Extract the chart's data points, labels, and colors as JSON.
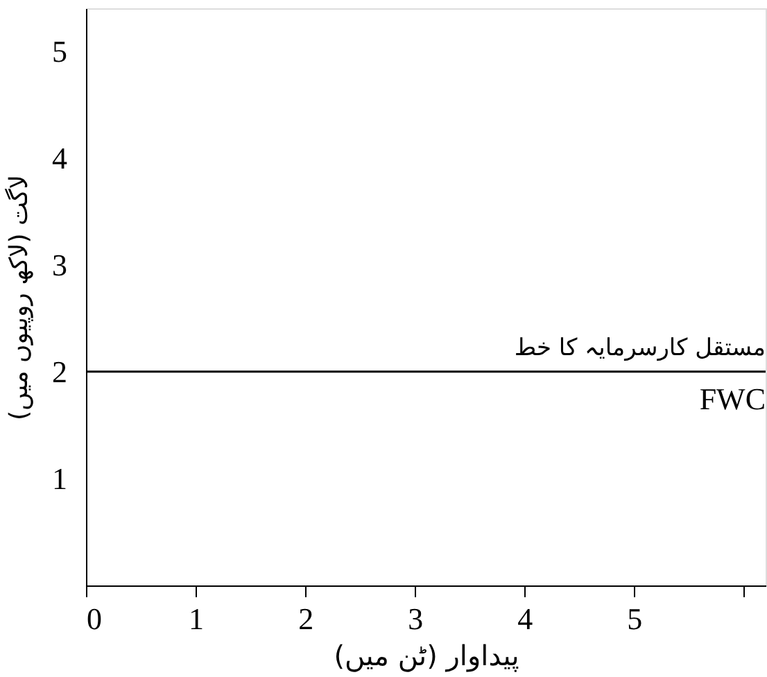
{
  "chart_data": {
    "type": "line",
    "xlabel": "پیداوار (ٹن میں)",
    "ylabel": "لاگت (لاکھ روپیوں میں)",
    "series": [
      {
        "name": "مستقل کارسرمایہ کا خط",
        "x": [
          0,
          6.2
        ],
        "values": [
          2,
          2
        ],
        "color": "#000000"
      }
    ],
    "xlim": [
      0,
      6.2
    ],
    "ylim": [
      0,
      5.4
    ],
    "xticks": [
      0,
      1,
      2,
      3,
      4,
      5,
      {
        "value": 6,
        "label": null
      }
    ],
    "yticks": [
      1,
      2,
      3,
      4,
      5
    ],
    "annotations": [
      "FWC"
    ],
    "grid": false,
    "legend": false
  }
}
